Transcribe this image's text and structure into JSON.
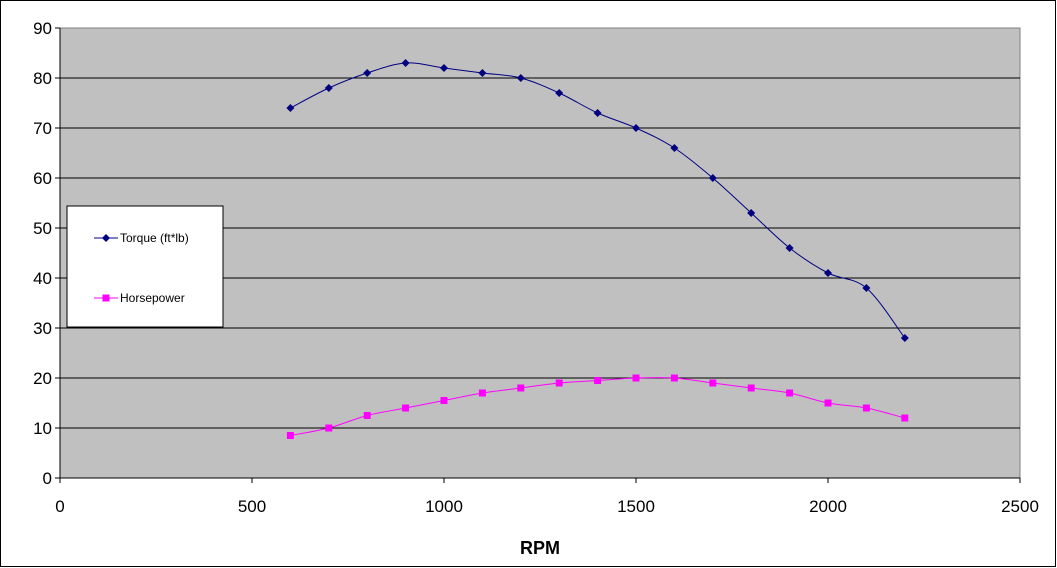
{
  "chart_data": {
    "type": "line",
    "title": "",
    "xlabel": "RPM",
    "ylabel": "",
    "xlim": [
      0,
      2500
    ],
    "ylim": [
      0,
      90
    ],
    "x_ticks": [
      0,
      500,
      1000,
      1500,
      2000,
      2500
    ],
    "y_ticks": [
      0,
      10,
      20,
      30,
      40,
      50,
      60,
      70,
      80,
      90
    ],
    "grid": "horizontal",
    "legend_position": "left",
    "x": [
      600,
      700,
      800,
      900,
      1000,
      1100,
      1200,
      1300,
      1400,
      1500,
      1600,
      1700,
      1800,
      1900,
      2000,
      2100,
      2200
    ],
    "series": [
      {
        "name": "Torque (ft*lb)",
        "color": "#000080",
        "marker": "diamond",
        "values": [
          74,
          78,
          81,
          83,
          82,
          81,
          80,
          77,
          73,
          70,
          66,
          60,
          53,
          46,
          41,
          38,
          28
        ]
      },
      {
        "name": "Horsepower",
        "color": "#ff00ff",
        "marker": "square",
        "values": [
          8.5,
          10,
          12.5,
          14,
          15.5,
          17,
          18,
          19,
          19.5,
          20,
          20,
          19,
          18,
          17,
          15,
          14,
          12
        ]
      }
    ],
    "colors": {
      "plot_background": "#c0c0c0",
      "gridline": "#000000",
      "page_background": "#ffffff"
    }
  }
}
